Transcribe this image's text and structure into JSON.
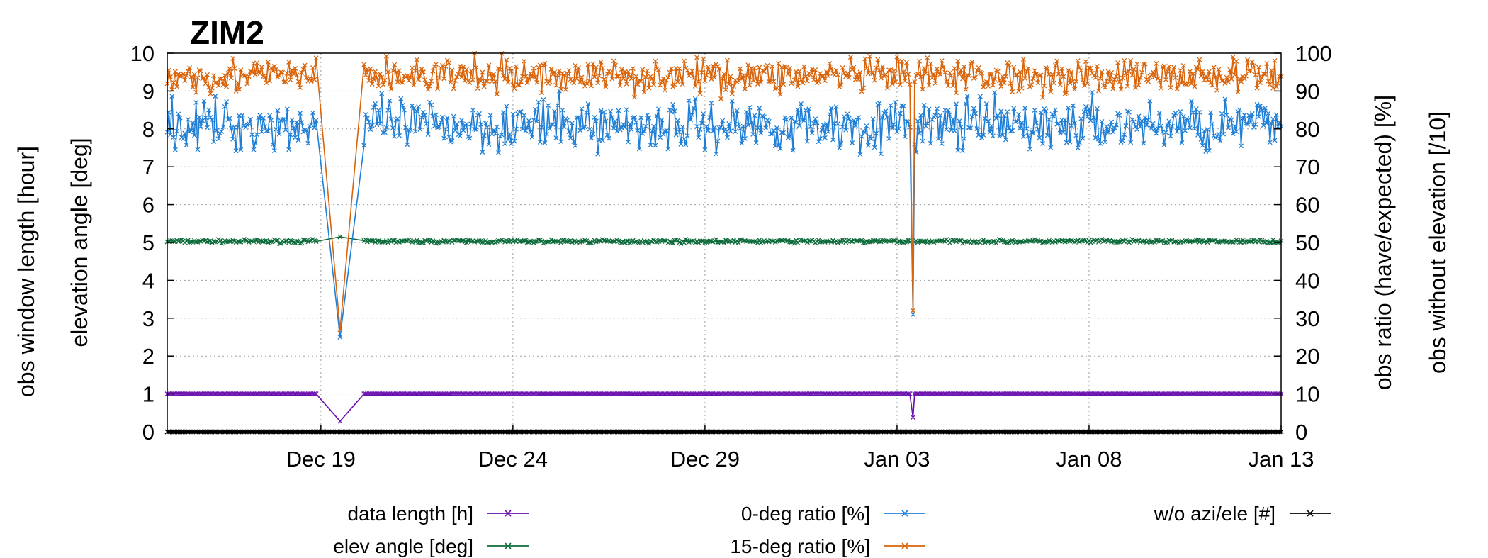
{
  "chart_data": {
    "type": "line",
    "title": "ZIM2",
    "y_left_labels": [
      "obs window length [hour]",
      "elevation angle [deg]"
    ],
    "y_right_labels": [
      "obs ratio (have/expected) [%]",
      "obs without elevation [/10]"
    ],
    "ylim_left": [
      0,
      10
    ],
    "ylim_right": [
      0,
      100
    ],
    "yticks_left": [
      "0",
      "1",
      "2",
      "3",
      "4",
      "5",
      "6",
      "7",
      "8",
      "9",
      "10"
    ],
    "yticks_right": [
      "0",
      "10",
      "20",
      "30",
      "40",
      "50",
      "60",
      "70",
      "80",
      "90",
      "100"
    ],
    "x_range_days": [
      -4,
      25
    ],
    "x_ticks": [
      {
        "day": 0,
        "label": "Dec 19"
      },
      {
        "day": 5,
        "label": "Dec 24"
      },
      {
        "day": 10,
        "label": "Dec 29"
      },
      {
        "day": 15,
        "label": "Jan 03"
      },
      {
        "day": 20,
        "label": "Jan 08"
      },
      {
        "day": 25,
        "label": "Jan 13"
      }
    ],
    "grid": true,
    "legend_position": "bottom",
    "series": [
      {
        "name": "data length  [h]",
        "color": "#6a0dad",
        "axis": "left",
        "base": 1.0,
        "noise": 0.0,
        "gaps": [
          {
            "from": -0.1,
            "to": 1.1,
            "value": 0.28
          },
          {
            "from": 15.35,
            "to": 15.45,
            "value": 0.38
          }
        ]
      },
      {
        "name": "elev angle [deg]",
        "color": "#0d6b3a",
        "axis": "left",
        "base": 5.03,
        "noise": 0.04,
        "gaps": [
          {
            "from": -0.1,
            "to": 1.1,
            "value": 5.15
          }
        ]
      },
      {
        "name": "0-deg ratio [%]",
        "color": "#1f7fd6",
        "axis": "right",
        "base": 81,
        "noise": 6,
        "gaps": [
          {
            "from": -0.1,
            "to": 1.1,
            "value": 25
          },
          {
            "from": 15.35,
            "to": 15.45,
            "value": 31
          }
        ]
      },
      {
        "name": "15-deg ratio [%]",
        "color": "#d9640a",
        "axis": "right",
        "base": 94,
        "noise": 4,
        "gaps": [
          {
            "from": -0.1,
            "to": 1.1,
            "value": 27
          },
          {
            "from": 15.35,
            "to": 15.45,
            "value": 32
          }
        ]
      },
      {
        "name": "w/o azi/ele [#]",
        "color": "#000000",
        "axis": "left",
        "base": 0.0,
        "noise": 0.0,
        "gaps": []
      }
    ]
  }
}
